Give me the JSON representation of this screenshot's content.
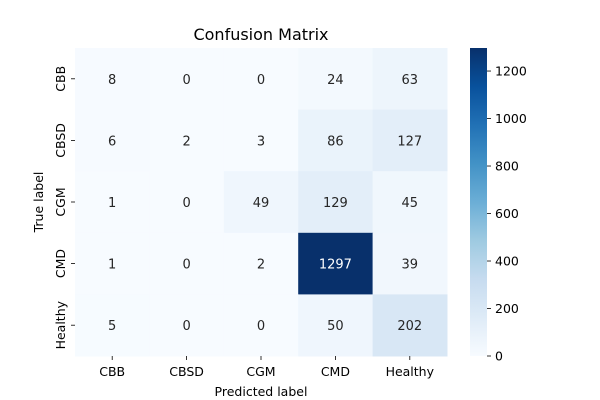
{
  "chart_data": {
    "type": "heatmap",
    "title": "Confusion Matrix",
    "xlabel": "Predicted label",
    "ylabel": "True label",
    "x_categories": [
      "CBB",
      "CBSD",
      "CGM",
      "CMD",
      "Healthy"
    ],
    "y_categories": [
      "CBB",
      "CBSD",
      "CGM",
      "CMD",
      "Healthy"
    ],
    "values": [
      [
        8,
        0,
        0,
        24,
        63
      ],
      [
        6,
        2,
        3,
        86,
        127
      ],
      [
        1,
        0,
        49,
        129,
        45
      ],
      [
        1,
        0,
        2,
        1297,
        39
      ],
      [
        5,
        0,
        0,
        50,
        202
      ]
    ],
    "colormap": "Blues",
    "vmin": 0,
    "vmax": 1297,
    "colorbar_ticks": [
      0,
      200,
      400,
      600,
      800,
      1000,
      1200
    ],
    "grid": false
  }
}
